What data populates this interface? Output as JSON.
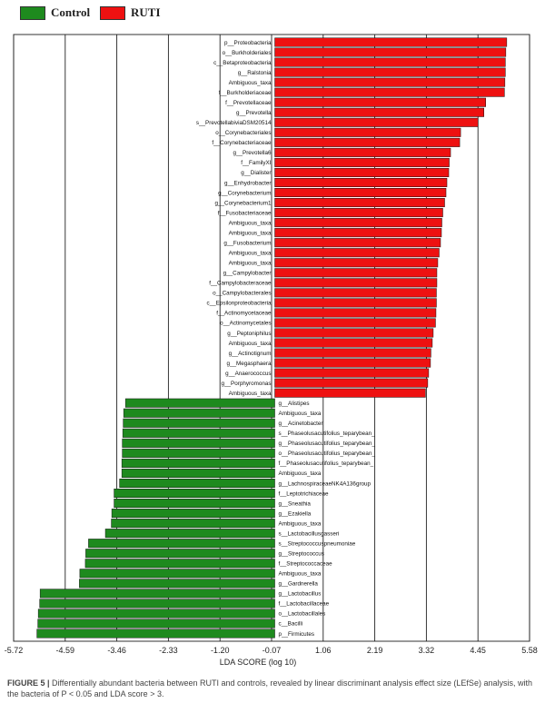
{
  "legend": {
    "control_label": "Control",
    "ruti_label": "RUTI"
  },
  "colors": {
    "control": "#1e8a1e",
    "ruti": "#ee1111",
    "grid": "#222222"
  },
  "caption": {
    "figure_label": "FIGURE 5 |",
    "text": " Differentially abundant bacteria between RUTI and controls, revealed by linear discriminant analysis effect size (LEfSe) analysis, with the bacteria of P < 0.05 and LDA score > 3."
  },
  "chart_data": {
    "type": "bar",
    "orientation": "horizontal",
    "xlabel": "LDA SCORE (log 10)",
    "xlim": [
      -5.72,
      5.58
    ],
    "xticks": [
      "-5.72",
      "-4.59",
      "-3.46",
      "-2.33",
      "-1.20",
      "-0.07",
      "1.06",
      "2.19",
      "3.32",
      "4.45",
      "5.58"
    ],
    "grid": true,
    "legend_position": "top-left",
    "series": [
      {
        "name": "RUTI",
        "categories": [
          "p__Proteobacteria",
          "o__Burkholderiales",
          "c__Betaproteobacteria",
          "g__Ralstonia",
          "Ambiguous_taxa",
          "f__Burkholderiaceae",
          "f__Prevotellaceae",
          "g__Prevotella",
          "s__PrevotellabiviaDSM20514",
          "o__Corynebacteriales",
          "f__Corynebacteriaceae",
          "g__Prevotella6",
          "f__FamilyXI",
          "g__Dialister",
          "g__Enhydrobacter",
          "g__Corynebacterium",
          "g__Corynebacterium1",
          "f__Fusobacteriaceae",
          "Ambiguous_taxa",
          "Ambiguous_taxa",
          "g__Fusobacterium",
          "Ambiguous_taxa",
          "Ambiguous_taxa",
          "g__Campylobacter",
          "f__Campylobacteraceae",
          "o__Campylobacterales",
          "c__Epsilonproteobacteria",
          "f__Actinomycetaceae",
          "o__Actinomycetales",
          "g__Peptoniphilus",
          "Ambiguous_taxa",
          "g__Actinotignum",
          "g__Megasphaera",
          "g__Anaerococcus",
          "g__Porphyromonas",
          "Ambiguous_taxa"
        ],
        "values": [
          5.08,
          5.06,
          5.05,
          5.05,
          5.04,
          5.03,
          4.62,
          4.58,
          4.45,
          4.07,
          4.05,
          3.85,
          3.82,
          3.81,
          3.77,
          3.75,
          3.72,
          3.68,
          3.66,
          3.65,
          3.63,
          3.6,
          3.57,
          3.55,
          3.55,
          3.54,
          3.54,
          3.53,
          3.52,
          3.47,
          3.45,
          3.42,
          3.41,
          3.37,
          3.35,
          3.3
        ]
      },
      {
        "name": "Control",
        "categories": [
          "g__Alistipes",
          "Ambiguous_taxa",
          "g__Acinetobacter",
          "s__Phaseolusacutifolius_teparybean_",
          "g__Phaseolusacutifolius_teparybean_",
          "o__Phaseolusacutifolius_teparybean_",
          "f__Phaseolusacutifolius_teparybean_",
          "Ambiguous_taxa",
          "g__LachnospiraceaeNK4A136group",
          "f__Leptotrichiaceae",
          "g__Sneathia",
          "g__Ezakiella",
          "Ambiguous_taxa",
          "s__Lactobacillusgasseri",
          "s__Streptococcuspneumoniae",
          "g__Streptococcus",
          "f__Streptococcaceae",
          "Ambiguous_taxa",
          "g__Gardnerella",
          "g__Lactobacillus",
          "f__Lactobacillaceae",
          "o__Lactobacillales",
          "c__Bacilli",
          "p__Firmicutes"
        ],
        "values": [
          -3.27,
          -3.31,
          -3.32,
          -3.33,
          -3.34,
          -3.34,
          -3.35,
          -3.35,
          -3.4,
          -3.52,
          -3.52,
          -3.57,
          -3.58,
          -3.71,
          -4.08,
          -4.14,
          -4.15,
          -4.27,
          -4.28,
          -5.14,
          -5.15,
          -5.18,
          -5.19,
          -5.21
        ]
      }
    ]
  }
}
